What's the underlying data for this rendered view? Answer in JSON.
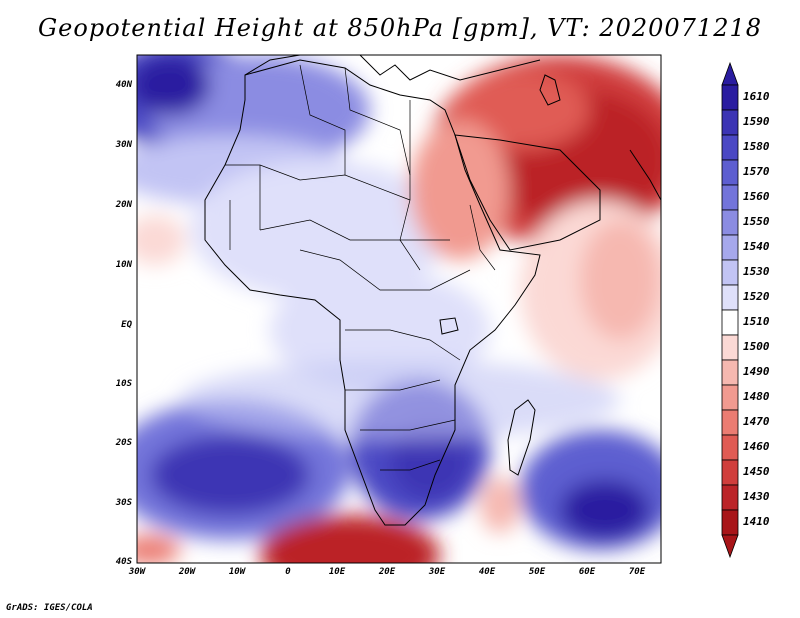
{
  "title": "Geopotential Height at 850hPa [gpm], VT: 2020071218",
  "credit": "GrADS: IGES/COLA",
  "map": {
    "lat_labels": [
      "40N",
      "30N",
      "20N",
      "10N",
      "EQ",
      "10S",
      "20S",
      "30S",
      "40S"
    ],
    "lon_labels": [
      "30W",
      "20W",
      "10W",
      "0",
      "10E",
      "20E",
      "30E",
      "40E",
      "50E",
      "60E",
      "70E"
    ]
  },
  "colorbar": {
    "labels": [
      "1610",
      "1590",
      "1580",
      "1570",
      "1560",
      "1550",
      "1540",
      "1530",
      "1520",
      "1510",
      "1500",
      "1490",
      "1480",
      "1470",
      "1460",
      "1450",
      "1430",
      "1410"
    ],
    "colors": [
      "#2a1ca0",
      "#3c34b4",
      "#4b48c4",
      "#5d5ed0",
      "#7374da",
      "#8b8ce2",
      "#a6a8ec",
      "#c2c4f4",
      "#dfe0fa",
      "#ffffff",
      "#fbd9d5",
      "#f6b8b0",
      "#f19a90",
      "#eb7c72",
      "#e05b54",
      "#d03e3c",
      "#bb2428",
      "#a81519"
    ]
  }
}
